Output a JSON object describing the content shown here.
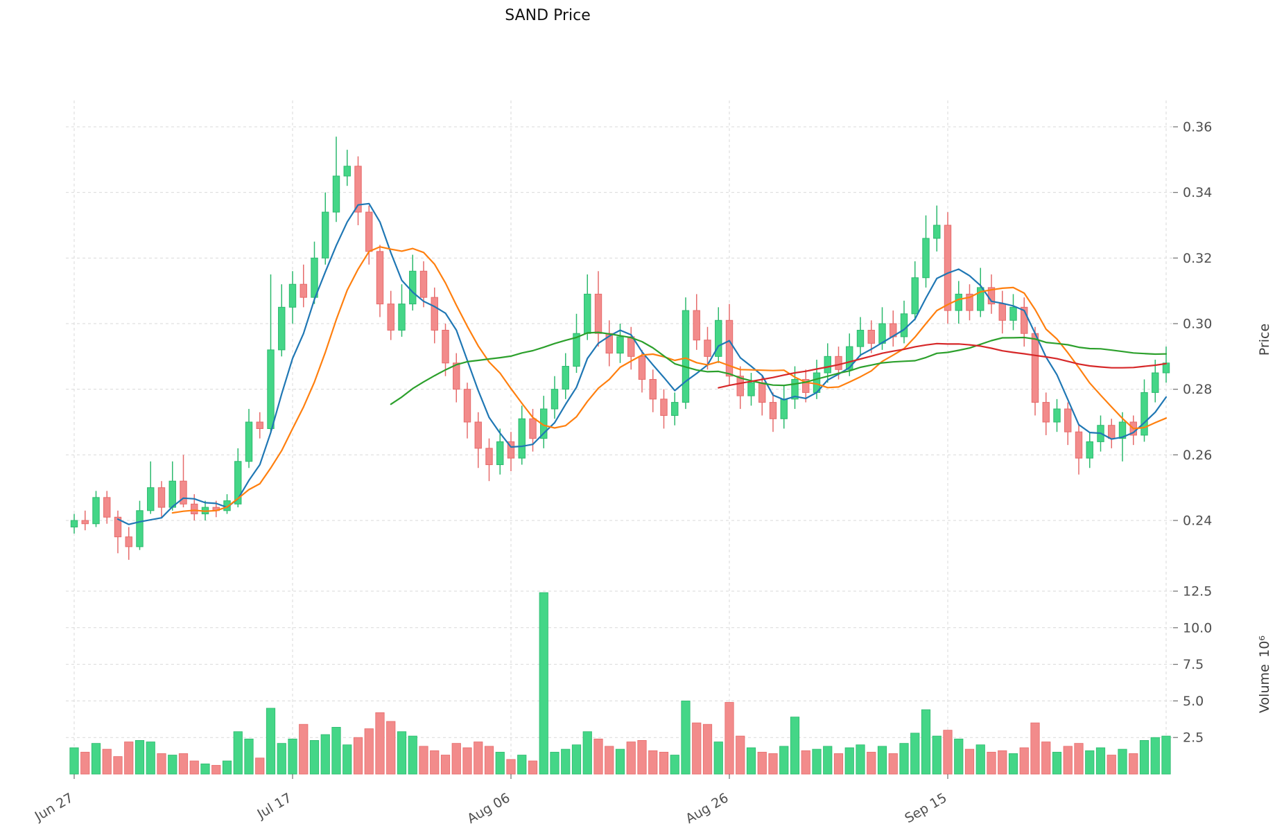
{
  "chart_data": {
    "type": "candlestick",
    "title": "SAND Price",
    "legend_position": "none",
    "grid": true,
    "price_axis": {
      "label": "Price",
      "side": "right",
      "range": [
        0.225,
        0.365
      ],
      "ticks": [
        {
          "value": 0.24,
          "label": "0.24"
        },
        {
          "value": 0.26,
          "label": "0.26"
        },
        {
          "value": 0.28,
          "label": "0.28"
        },
        {
          "value": 0.3,
          "label": "0.30"
        },
        {
          "value": 0.32,
          "label": "0.32"
        },
        {
          "value": 0.34,
          "label": "0.34"
        },
        {
          "value": 0.36,
          "label": "0.36"
        }
      ]
    },
    "volume_axis": {
      "label": "Volume",
      "unit": "10⁶",
      "side": "right",
      "range": [
        0,
        13.5
      ],
      "ticks": [
        {
          "value": 2.5,
          "label": "2.5"
        },
        {
          "value": 5.0,
          "label": "5.0"
        },
        {
          "value": 7.5,
          "label": "7.5"
        },
        {
          "value": 10.0,
          "label": "10.0"
        },
        {
          "value": 12.5,
          "label": "12.5"
        }
      ]
    },
    "x_axis": {
      "ticks": [
        {
          "day": 0,
          "label": "Jun 27"
        },
        {
          "day": 20,
          "label": "Jul 17"
        },
        {
          "day": 40,
          "label": "Aug 06"
        },
        {
          "day": 60,
          "label": "Aug 26"
        },
        {
          "day": 80,
          "label": "Sep 15"
        },
        {
          "day": 100,
          "label": ""
        }
      ]
    },
    "moving_averages": [
      {
        "name": "MA5",
        "window": 5,
        "color": "#1f77b4"
      },
      {
        "name": "MA10",
        "window": 10,
        "color": "#ff7f0e"
      },
      {
        "name": "MA30",
        "window": 30,
        "color": "#2ca02c"
      },
      {
        "name": "MA60",
        "window": 60,
        "color": "#d62728"
      }
    ],
    "colors": {
      "up": "#44d687",
      "up_border": "#2bb96d",
      "down": "#f28b8b",
      "down_border": "#e66a6a",
      "grid": "#d9d9d9",
      "tick_text": "#4f4f4f",
      "title_text": "#111111"
    },
    "ohlc": [
      [
        0.238,
        0.242,
        0.236,
        0.24
      ],
      [
        0.24,
        0.243,
        0.237,
        0.239
      ],
      [
        0.239,
        0.249,
        0.238,
        0.247
      ],
      [
        0.247,
        0.249,
        0.239,
        0.241
      ],
      [
        0.241,
        0.243,
        0.23,
        0.235
      ],
      [
        0.235,
        0.238,
        0.228,
        0.232
      ],
      [
        0.232,
        0.246,
        0.231,
        0.243
      ],
      [
        0.243,
        0.258,
        0.242,
        0.25
      ],
      [
        0.25,
        0.252,
        0.241,
        0.244
      ],
      [
        0.244,
        0.258,
        0.243,
        0.252
      ],
      [
        0.252,
        0.26,
        0.244,
        0.245
      ],
      [
        0.245,
        0.248,
        0.24,
        0.242
      ],
      [
        0.242,
        0.246,
        0.24,
        0.244
      ],
      [
        0.244,
        0.246,
        0.241,
        0.243
      ],
      [
        0.243,
        0.248,
        0.242,
        0.246
      ],
      [
        0.245,
        0.262,
        0.244,
        0.258
      ],
      [
        0.258,
        0.274,
        0.256,
        0.27
      ],
      [
        0.27,
        0.273,
        0.265,
        0.268
      ],
      [
        0.268,
        0.315,
        0.267,
        0.292
      ],
      [
        0.292,
        0.312,
        0.29,
        0.305
      ],
      [
        0.305,
        0.316,
        0.3,
        0.312
      ],
      [
        0.312,
        0.318,
        0.305,
        0.308
      ],
      [
        0.308,
        0.325,
        0.306,
        0.32
      ],
      [
        0.32,
        0.34,
        0.318,
        0.334
      ],
      [
        0.334,
        0.357,
        0.331,
        0.345
      ],
      [
        0.345,
        0.353,
        0.342,
        0.348
      ],
      [
        0.348,
        0.351,
        0.33,
        0.334
      ],
      [
        0.334,
        0.336,
        0.318,
        0.322
      ],
      [
        0.322,
        0.324,
        0.302,
        0.306
      ],
      [
        0.306,
        0.31,
        0.295,
        0.298
      ],
      [
        0.298,
        0.312,
        0.296,
        0.306
      ],
      [
        0.306,
        0.321,
        0.304,
        0.316
      ],
      [
        0.316,
        0.319,
        0.305,
        0.308
      ],
      [
        0.308,
        0.311,
        0.294,
        0.298
      ],
      [
        0.298,
        0.3,
        0.284,
        0.288
      ],
      [
        0.288,
        0.291,
        0.276,
        0.28
      ],
      [
        0.28,
        0.282,
        0.265,
        0.27
      ],
      [
        0.27,
        0.273,
        0.256,
        0.262
      ],
      [
        0.262,
        0.265,
        0.252,
        0.257
      ],
      [
        0.257,
        0.268,
        0.254,
        0.264
      ],
      [
        0.264,
        0.267,
        0.255,
        0.259
      ],
      [
        0.259,
        0.275,
        0.257,
        0.271
      ],
      [
        0.271,
        0.274,
        0.261,
        0.265
      ],
      [
        0.265,
        0.278,
        0.262,
        0.274
      ],
      [
        0.274,
        0.284,
        0.271,
        0.28
      ],
      [
        0.28,
        0.291,
        0.277,
        0.287
      ],
      [
        0.287,
        0.303,
        0.285,
        0.297
      ],
      [
        0.297,
        0.315,
        0.295,
        0.309
      ],
      [
        0.309,
        0.316,
        0.293,
        0.297
      ],
      [
        0.297,
        0.301,
        0.287,
        0.291
      ],
      [
        0.291,
        0.3,
        0.288,
        0.296
      ],
      [
        0.296,
        0.299,
        0.286,
        0.29
      ],
      [
        0.29,
        0.292,
        0.279,
        0.283
      ],
      [
        0.283,
        0.286,
        0.273,
        0.277
      ],
      [
        0.277,
        0.28,
        0.268,
        0.272
      ],
      [
        0.272,
        0.279,
        0.269,
        0.276
      ],
      [
        0.276,
        0.308,
        0.274,
        0.304
      ],
      [
        0.304,
        0.309,
        0.292,
        0.295
      ],
      [
        0.295,
        0.299,
        0.286,
        0.29
      ],
      [
        0.29,
        0.305,
        0.288,
        0.301
      ],
      [
        0.301,
        0.306,
        0.281,
        0.284
      ],
      [
        0.284,
        0.287,
        0.274,
        0.278
      ],
      [
        0.278,
        0.285,
        0.275,
        0.282
      ],
      [
        0.282,
        0.284,
        0.272,
        0.276
      ],
      [
        0.276,
        0.279,
        0.267,
        0.271
      ],
      [
        0.271,
        0.281,
        0.268,
        0.277
      ],
      [
        0.277,
        0.287,
        0.274,
        0.283
      ],
      [
        0.283,
        0.286,
        0.276,
        0.279
      ],
      [
        0.279,
        0.289,
        0.277,
        0.285
      ],
      [
        0.285,
        0.294,
        0.282,
        0.29
      ],
      [
        0.29,
        0.293,
        0.283,
        0.286
      ],
      [
        0.286,
        0.297,
        0.284,
        0.293
      ],
      [
        0.293,
        0.302,
        0.29,
        0.298
      ],
      [
        0.298,
        0.301,
        0.291,
        0.294
      ],
      [
        0.294,
        0.305,
        0.292,
        0.3
      ],
      [
        0.3,
        0.304,
        0.293,
        0.296
      ],
      [
        0.296,
        0.307,
        0.294,
        0.303
      ],
      [
        0.303,
        0.319,
        0.301,
        0.314
      ],
      [
        0.314,
        0.333,
        0.311,
        0.326
      ],
      [
        0.326,
        0.336,
        0.322,
        0.33
      ],
      [
        0.33,
        0.334,
        0.3,
        0.304
      ],
      [
        0.304,
        0.313,
        0.3,
        0.309
      ],
      [
        0.309,
        0.312,
        0.301,
        0.304
      ],
      [
        0.304,
        0.317,
        0.302,
        0.311
      ],
      [
        0.311,
        0.315,
        0.303,
        0.306
      ],
      [
        0.306,
        0.31,
        0.297,
        0.301
      ],
      [
        0.301,
        0.309,
        0.298,
        0.305
      ],
      [
        0.305,
        0.308,
        0.293,
        0.297
      ],
      [
        0.297,
        0.299,
        0.272,
        0.276
      ],
      [
        0.276,
        0.279,
        0.266,
        0.27
      ],
      [
        0.27,
        0.277,
        0.267,
        0.274
      ],
      [
        0.274,
        0.276,
        0.263,
        0.267
      ],
      [
        0.267,
        0.269,
        0.254,
        0.259
      ],
      [
        0.259,
        0.267,
        0.256,
        0.264
      ],
      [
        0.264,
        0.272,
        0.261,
        0.269
      ],
      [
        0.269,
        0.271,
        0.262,
        0.265
      ],
      [
        0.265,
        0.273,
        0.258,
        0.27
      ],
      [
        0.27,
        0.272,
        0.263,
        0.266
      ],
      [
        0.266,
        0.283,
        0.264,
        0.279
      ],
      [
        0.279,
        0.289,
        0.276,
        0.285
      ],
      [
        0.285,
        0.293,
        0.282,
        0.288
      ]
    ],
    "volume": [
      1.8,
      1.5,
      2.1,
      1.7,
      1.2,
      2.2,
      2.3,
      2.2,
      1.4,
      1.3,
      1.4,
      0.9,
      0.7,
      0.6,
      0.9,
      2.9,
      2.4,
      1.1,
      4.5,
      2.1,
      2.4,
      3.4,
      2.3,
      2.7,
      3.2,
      2.0,
      2.5,
      3.1,
      4.2,
      3.6,
      2.9,
      2.6,
      1.9,
      1.6,
      1.3,
      2.1,
      1.8,
      2.2,
      1.9,
      1.5,
      1.0,
      1.3,
      0.9,
      12.4,
      1.5,
      1.7,
      2.0,
      2.9,
      2.4,
      1.9,
      1.7,
      2.2,
      2.3,
      1.6,
      1.5,
      1.3,
      5.0,
      3.5,
      3.4,
      2.2,
      4.9,
      2.6,
      1.8,
      1.5,
      1.4,
      1.9,
      3.9,
      1.6,
      1.7,
      1.9,
      1.4,
      1.8,
      2.0,
      1.5,
      1.9,
      1.4,
      2.1,
      2.8,
      4.4,
      2.6,
      3.0,
      2.4,
      1.7,
      2.0,
      1.5,
      1.6,
      1.4,
      1.8,
      3.5,
      2.2,
      1.5,
      1.9,
      2.1,
      1.6,
      1.8,
      1.3,
      1.7,
      1.4,
      2.3,
      2.5,
      2.6
    ]
  }
}
